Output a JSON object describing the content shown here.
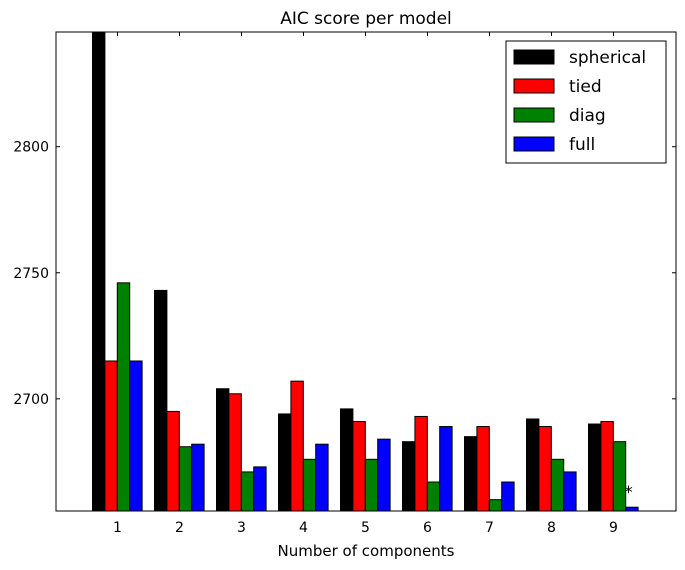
{
  "chart_data": {
    "type": "bar",
    "title": "AIC score per model",
    "xlabel": "Number of components",
    "ylabel": "",
    "categories": [
      "1",
      "2",
      "3",
      "4",
      "5",
      "6",
      "7",
      "8",
      "9"
    ],
    "ylim": [
      2655.5,
      2845.5
    ],
    "yticks": [
      2700,
      2750,
      2800
    ],
    "legend_placement": "top-right",
    "grid": false,
    "series": [
      {
        "name": "spherical",
        "color": "#000000",
        "values": [
          2846,
          2743,
          2704,
          2694,
          2696,
          2683,
          2685,
          2692,
          2690
        ]
      },
      {
        "name": "tied",
        "color": "#ff0000",
        "values": [
          2715,
          2695,
          2702,
          2707,
          2691,
          2693,
          2689,
          2689,
          2691
        ]
      },
      {
        "name": "diag",
        "color": "#008000",
        "values": [
          2746,
          2681,
          2671,
          2676,
          2676,
          2667,
          2660,
          2676,
          2683
        ]
      },
      {
        "name": "full",
        "color": "#0000ff",
        "values": [
          2715,
          2682,
          2673,
          2682,
          2684,
          2689,
          2667,
          2671,
          2657
        ]
      }
    ],
    "annotations": [
      {
        "text": "*",
        "category": "9"
      }
    ]
  }
}
